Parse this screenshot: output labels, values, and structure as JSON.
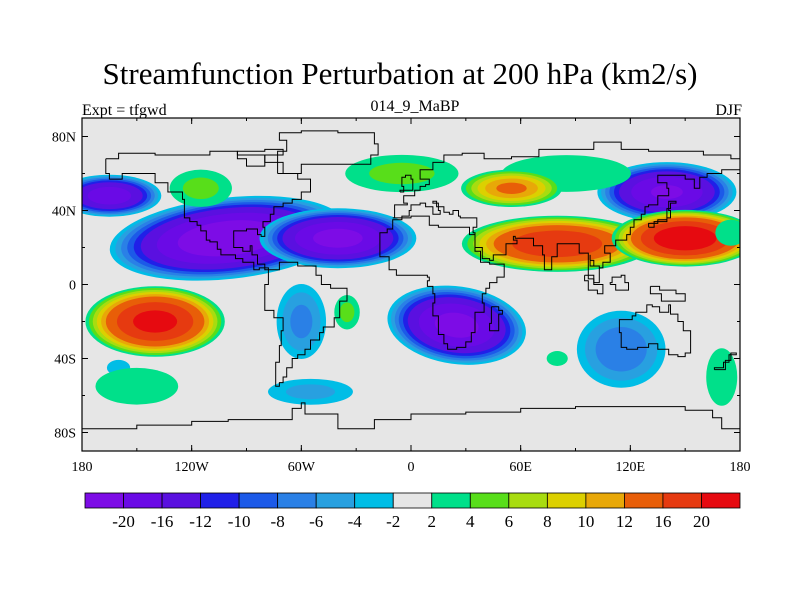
{
  "title": "Streamfunction Perturbation at 200 hPa (km2/s)",
  "left_label": "Expt = tfgwd",
  "center_label": "014_9_MaBP",
  "right_label": "DJF",
  "x_ticks": [
    {
      "lon": -180,
      "label": "180"
    },
    {
      "lon": -120,
      "label": "120W"
    },
    {
      "lon": -60,
      "label": "60W"
    },
    {
      "lon": 0,
      "label": "0"
    },
    {
      "lon": 60,
      "label": "60E"
    },
    {
      "lon": 120,
      "label": "120E"
    },
    {
      "lon": 180,
      "label": "180"
    }
  ],
  "y_ticks": [
    {
      "lat": 80,
      "label": "80N"
    },
    {
      "lat": 40,
      "label": "40N"
    },
    {
      "lat": 0,
      "label": "0"
    },
    {
      "lat": -40,
      "label": "40S"
    },
    {
      "lat": -80,
      "label": "80S"
    }
  ],
  "lon_range": [
    -180,
    180
  ],
  "lat_range": [
    -90,
    90
  ],
  "colorbar": {
    "colors": [
      "#7d0ce6",
      "#6a0ae6",
      "#5a10e0",
      "#2020e8",
      "#1c5ae8",
      "#2a80e6",
      "#28a0e0",
      "#00bde6",
      "#e6e6e6",
      "#00e08a",
      "#58de1a",
      "#a8dc10",
      "#dcd000",
      "#e8a808",
      "#e85e08",
      "#e63a10",
      "#e60a10"
    ],
    "labels": [
      "-20",
      "-16",
      "-12",
      "-10",
      "-8",
      "-6",
      "-4",
      "-2",
      "2",
      "4",
      "6",
      "8",
      "10",
      "12",
      "16",
      "20"
    ]
  },
  "field": {
    "background": "#e6e6e6",
    "blobs": [
      {
        "lon": -100,
        "lat": 25,
        "rx": 68,
        "ry": 23,
        "amp": -24,
        "rot": -6
      },
      {
        "lon": -40,
        "lat": 25,
        "rx": 45,
        "ry": 17,
        "amp": -22,
        "rot": 0
      },
      {
        "lon": -165,
        "lat": 48,
        "rx": 30,
        "ry": 12,
        "amp": -19,
        "rot": 0
      },
      {
        "lon": 25,
        "lat": -22,
        "rx": 40,
        "ry": 22,
        "amp": -22,
        "rot": 8
      },
      {
        "lon": 140,
        "lat": 50,
        "rx": 40,
        "ry": 17,
        "amp": -21,
        "rot": 0
      },
      {
        "lon": 115,
        "lat": -35,
        "rx": 28,
        "ry": 24,
        "amp": -8,
        "rot": 0
      },
      {
        "lon": -60,
        "lat": -20,
        "rx": 16,
        "ry": 24,
        "amp": -7,
        "rot": 0
      },
      {
        "lon": -55,
        "lat": -58,
        "rx": 30,
        "ry": 9,
        "amp": -5,
        "rot": 0
      },
      {
        "lon": -160,
        "lat": -45,
        "rx": 9,
        "ry": 6,
        "amp": -4,
        "rot": 0
      },
      {
        "lon": 85,
        "lat": 60,
        "rx": 50,
        "ry": 14,
        "amp": 4,
        "rot": 0
      },
      {
        "lon": -115,
        "lat": 52,
        "rx": 22,
        "ry": 13,
        "amp": 5,
        "rot": 0
      },
      {
        "lon": -5,
        "lat": 60,
        "rx": 40,
        "ry": 13,
        "amp": 5,
        "rot": 0
      },
      {
        "lon": 55,
        "lat": 52,
        "rx": 30,
        "ry": 11,
        "amp": 13,
        "rot": 0
      },
      {
        "lon": 80,
        "lat": 22,
        "rx": 55,
        "ry": 16,
        "amp": 20,
        "rot": 0
      },
      {
        "lon": 150,
        "lat": 25,
        "rx": 42,
        "ry": 16,
        "amp": 24,
        "rot": 0
      },
      {
        "lon": -140,
        "lat": -20,
        "rx": 40,
        "ry": 20,
        "amp": 22,
        "rot": 0
      },
      {
        "lon": -150,
        "lat": -55,
        "rx": 32,
        "ry": 14,
        "amp": 4,
        "rot": 0
      },
      {
        "lon": 170,
        "lat": -50,
        "rx": 12,
        "ry": 22,
        "amp": 4,
        "rot": 0
      },
      {
        "lon": -35,
        "lat": -15,
        "rx": 9,
        "ry": 12,
        "amp": 5,
        "rot": 0
      },
      {
        "lon": 80,
        "lat": -40,
        "rx": 10,
        "ry": 7,
        "amp": 3,
        "rot": 0
      },
      {
        "lon": 175,
        "lat": 28,
        "rx": 12,
        "ry": 10,
        "amp": 4,
        "rot": 0
      }
    ]
  },
  "coastlines": [
    [
      [
        -167,
        68
      ],
      [
        -160,
        71
      ],
      [
        -140,
        70
      ],
      [
        -125,
        70
      ],
      [
        -110,
        72
      ],
      [
        -95,
        70
      ],
      [
        -80,
        66
      ],
      [
        -70,
        60
      ],
      [
        -62,
        57
      ],
      [
        -55,
        50
      ],
      [
        -60,
        46
      ],
      [
        -65,
        44
      ],
      [
        -70,
        42
      ],
      [
        -75,
        38
      ],
      [
        -77,
        34
      ],
      [
        -81,
        31
      ],
      [
        -80,
        26
      ],
      [
        -82,
        27
      ],
      [
        -84,
        30
      ],
      [
        -90,
        29
      ],
      [
        -97,
        26
      ],
      [
        -97,
        20
      ],
      [
        -92,
        18
      ],
      [
        -88,
        21
      ],
      [
        -87,
        16
      ],
      [
        -84,
        11
      ],
      [
        -80,
        8
      ],
      [
        -78,
        9
      ],
      [
        -83,
        8
      ],
      [
        -86,
        12
      ],
      [
        -92,
        14
      ],
      [
        -96,
        16
      ],
      [
        -104,
        19
      ],
      [
        -106,
        23
      ],
      [
        -110,
        24
      ],
      [
        -112,
        29
      ],
      [
        -115,
        32
      ],
      [
        -117,
        34
      ],
      [
        -121,
        36
      ],
      [
        -124,
        41
      ],
      [
        -124,
        46
      ],
      [
        -125,
        50
      ],
      [
        -133,
        55
      ],
      [
        -140,
        60
      ],
      [
        -150,
        60
      ],
      [
        -158,
        57
      ],
      [
        -165,
        60
      ],
      [
        -167,
        68
      ]
    ],
    [
      [
        -78,
        8
      ],
      [
        -72,
        12
      ],
      [
        -62,
        10
      ],
      [
        -52,
        5
      ],
      [
        -49,
        0
      ],
      [
        -44,
        -2
      ],
      [
        -35,
        -6
      ],
      [
        -35,
        -9
      ],
      [
        -39,
        -14
      ],
      [
        -39,
        -18
      ],
      [
        -42,
        -23
      ],
      [
        -48,
        -26
      ],
      [
        -50,
        -30
      ],
      [
        -55,
        -35
      ],
      [
        -58,
        -38
      ],
      [
        -62,
        -40
      ],
      [
        -65,
        -45
      ],
      [
        -68,
        -50
      ],
      [
        -70,
        -53
      ],
      [
        -72,
        -55
      ],
      [
        -74,
        -50
      ],
      [
        -74,
        -42
      ],
      [
        -72,
        -33
      ],
      [
        -71,
        -25
      ],
      [
        -70,
        -18
      ],
      [
        -75,
        -14
      ],
      [
        -80,
        -5
      ],
      [
        -80,
        0
      ],
      [
        -78,
        8
      ]
    ],
    [
      [
        -73,
        60
      ],
      [
        -60,
        65
      ],
      [
        -40,
        65
      ],
      [
        -22,
        70
      ],
      [
        -18,
        76
      ],
      [
        -20,
        82
      ],
      [
        -40,
        83
      ],
      [
        -60,
        82
      ],
      [
        -72,
        78
      ],
      [
        -68,
        72
      ],
      [
        -73,
        60
      ]
    ],
    [
      [
        -10,
        36
      ],
      [
        -9,
        43
      ],
      [
        -2,
        44
      ],
      [
        -4,
        48
      ],
      [
        2,
        51
      ],
      [
        5,
        53
      ],
      [
        8,
        54
      ],
      [
        10,
        57
      ],
      [
        5,
        60
      ],
      [
        5,
        62
      ],
      [
        12,
        66
      ],
      [
        18,
        70
      ],
      [
        28,
        71
      ],
      [
        40,
        68
      ],
      [
        45,
        68
      ],
      [
        55,
        69
      ],
      [
        70,
        73
      ],
      [
        80,
        73
      ],
      [
        100,
        77
      ],
      [
        115,
        73
      ],
      [
        130,
        72
      ],
      [
        140,
        72
      ],
      [
        160,
        70
      ],
      [
        175,
        68
      ],
      [
        180,
        66
      ],
      [
        180,
        62
      ],
      [
        170,
        60
      ],
      [
        162,
        58
      ],
      [
        158,
        52
      ],
      [
        155,
        57
      ],
      [
        150,
        59
      ],
      [
        140,
        59
      ],
      [
        135,
        55
      ],
      [
        140,
        52
      ],
      [
        141,
        48
      ],
      [
        135,
        43
      ],
      [
        130,
        42
      ],
      [
        128,
        38
      ],
      [
        126,
        35
      ],
      [
        122,
        31
      ],
      [
        120,
        27
      ],
      [
        118,
        24
      ],
      [
        112,
        21
      ],
      [
        108,
        21
      ],
      [
        106,
        17
      ],
      [
        109,
        12
      ],
      [
        105,
        9
      ],
      [
        103,
        10
      ],
      [
        100,
        13
      ],
      [
        98,
        16
      ],
      [
        98,
        10
      ],
      [
        103,
        1
      ],
      [
        100,
        3
      ],
      [
        97,
        17
      ],
      [
        92,
        22
      ],
      [
        88,
        22
      ],
      [
        80,
        15
      ],
      [
        77,
        8
      ],
      [
        73,
        16
      ],
      [
        72,
        21
      ],
      [
        67,
        25
      ],
      [
        62,
        25
      ],
      [
        57,
        26
      ],
      [
        56,
        24
      ],
      [
        58,
        22
      ],
      [
        52,
        16
      ],
      [
        45,
        13
      ],
      [
        43,
        14
      ],
      [
        39,
        20
      ],
      [
        35,
        28
      ],
      [
        34,
        31
      ],
      [
        36,
        36
      ],
      [
        30,
        36
      ],
      [
        27,
        37
      ],
      [
        26,
        40
      ],
      [
        23,
        38
      ],
      [
        21,
        39
      ],
      [
        18,
        42
      ],
      [
        14,
        45
      ],
      [
        12,
        44
      ],
      [
        15,
        40
      ],
      [
        16,
        38
      ],
      [
        12,
        42
      ],
      [
        8,
        44
      ],
      [
        5,
        43
      ],
      [
        3,
        43
      ],
      [
        0,
        40
      ],
      [
        -1,
        37
      ],
      [
        -5,
        36
      ],
      [
        -10,
        36
      ]
    ],
    [
      [
        -17,
        21
      ],
      [
        -17,
        15
      ],
      [
        -12,
        8
      ],
      [
        -8,
        5
      ],
      [
        0,
        5
      ],
      [
        5,
        5
      ],
      [
        9,
        4
      ],
      [
        10,
        2
      ],
      [
        9,
        -1
      ],
      [
        12,
        -5
      ],
      [
        13,
        -10
      ],
      [
        12,
        -17
      ],
      [
        15,
        -27
      ],
      [
        18,
        -32
      ],
      [
        20,
        -35
      ],
      [
        25,
        -34
      ],
      [
        30,
        -31
      ],
      [
        33,
        -26
      ],
      [
        35,
        -22
      ],
      [
        35,
        -15
      ],
      [
        40,
        -10
      ],
      [
        39,
        -5
      ],
      [
        41,
        -2
      ],
      [
        43,
        1
      ],
      [
        47,
        4
      ],
      [
        51,
        11
      ],
      [
        44,
        11
      ],
      [
        43,
        12
      ],
      [
        38,
        18
      ],
      [
        35,
        27
      ],
      [
        32,
        31
      ],
      [
        25,
        31
      ],
      [
        20,
        31
      ],
      [
        15,
        32
      ],
      [
        10,
        34
      ],
      [
        10,
        37
      ],
      [
        5,
        37
      ],
      [
        0,
        36
      ],
      [
        -5,
        35
      ],
      [
        -10,
        30
      ],
      [
        -13,
        28
      ],
      [
        -17,
        21
      ]
    ],
    [
      [
        114,
        -22
      ],
      [
        114,
        -26
      ],
      [
        115,
        -34
      ],
      [
        118,
        -35
      ],
      [
        124,
        -34
      ],
      [
        130,
        -32
      ],
      [
        135,
        -35
      ],
      [
        138,
        -35
      ],
      [
        141,
        -38
      ],
      [
        146,
        -39
      ],
      [
        150,
        -37
      ],
      [
        153,
        -32
      ],
      [
        153,
        -25
      ],
      [
        149,
        -20
      ],
      [
        146,
        -16
      ],
      [
        142,
        -11
      ],
      [
        141,
        -15
      ],
      [
        136,
        -12
      ],
      [
        132,
        -11
      ],
      [
        129,
        -15
      ],
      [
        123,
        -17
      ],
      [
        121,
        -19
      ],
      [
        114,
        -22
      ]
    ],
    [
      [
        -180,
        -78
      ],
      [
        -150,
        -76
      ],
      [
        -120,
        -74
      ],
      [
        -100,
        -73
      ],
      [
        -80,
        -73
      ],
      [
        -65,
        -67
      ],
      [
        -60,
        -64
      ],
      [
        -58,
        -70
      ],
      [
        -40,
        -78
      ],
      [
        -20,
        -73
      ],
      [
        0,
        -70
      ],
      [
        30,
        -69
      ],
      [
        60,
        -67
      ],
      [
        90,
        -66
      ],
      [
        120,
        -66
      ],
      [
        150,
        -68
      ],
      [
        165,
        -72
      ],
      [
        170,
        -78
      ],
      [
        180,
        -78
      ]
    ],
    [
      [
        44,
        -12
      ],
      [
        48,
        -14
      ],
      [
        50,
        -16
      ],
      [
        48,
        -25
      ],
      [
        45,
        -25
      ],
      [
        43,
        -21
      ],
      [
        44,
        -12
      ]
    ],
    [
      [
        -6,
        50
      ],
      [
        -4,
        53
      ],
      [
        -5,
        58
      ],
      [
        -3,
        59
      ],
      [
        0,
        57
      ],
      [
        1,
        53
      ],
      [
        1,
        51
      ],
      [
        -6,
        50
      ]
    ],
    [
      [
        130,
        31
      ],
      [
        133,
        34
      ],
      [
        140,
        36
      ],
      [
        142,
        40
      ],
      [
        141,
        45
      ],
      [
        145,
        44
      ],
      [
        142,
        41
      ],
      [
        140,
        35
      ],
      [
        135,
        33
      ],
      [
        130,
        31
      ]
    ],
    [
      [
        95,
        5
      ],
      [
        100,
        0
      ],
      [
        105,
        -5
      ],
      [
        102,
        -3
      ],
      [
        97,
        2
      ],
      [
        95,
        5
      ]
    ],
    [
      [
        109,
        0
      ],
      [
        112,
        -3
      ],
      [
        117,
        -3
      ],
      [
        119,
        1
      ],
      [
        117,
        5
      ],
      [
        115,
        4
      ],
      [
        110,
        1
      ],
      [
        109,
        0
      ]
    ],
    [
      [
        131,
        -1
      ],
      [
        136,
        -3
      ],
      [
        141,
        -3
      ],
      [
        145,
        -5
      ],
      [
        150,
        -9
      ],
      [
        141,
        -9
      ],
      [
        137,
        -5
      ],
      [
        131,
        -1
      ]
    ],
    [
      [
        -95,
        72
      ],
      [
        -80,
        73
      ],
      [
        -70,
        70
      ],
      [
        -80,
        64
      ],
      [
        -90,
        68
      ],
      [
        -95,
        72
      ]
    ],
    [
      [
        166,
        -46
      ],
      [
        172,
        -41
      ],
      [
        175,
        -37
      ],
      [
        178,
        -38
      ],
      [
        174,
        -42
      ],
      [
        171,
        -45
      ],
      [
        166,
        -46
      ]
    ]
  ]
}
